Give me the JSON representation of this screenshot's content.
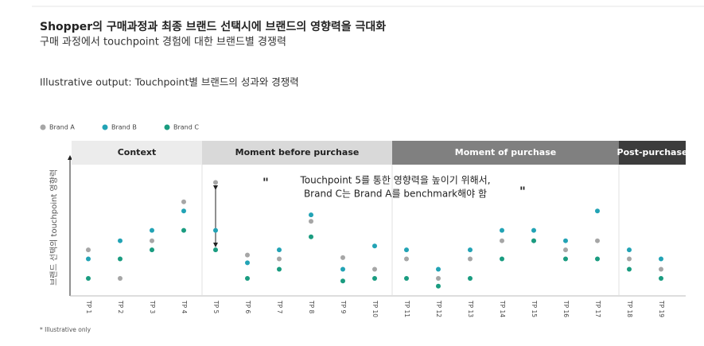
{
  "chart_data": {
    "type": "scatter",
    "title": "Shopper의 구매과정과 최종 브랜드 선택시에 브랜드의 영향력을 극대화",
    "subtitle": "구매 과정에서 touchpoint 경험에 대한 브랜드별 경쟁력",
    "caption": "Illustrative output: Touchpoint별 브랜드의 성과와 경쟁력",
    "y_label": "브랜드 선택의 touchpoint 영향력",
    "footnote": "* Illustrative only",
    "annotation": [
      "Touchpoint 5를 통한 영향력을 높이기 위해서,",
      "Brand C는 Brand A를 benchmark해야 함"
    ],
    "phases": [
      "Context",
      "Moment before purchase",
      "Moment of purchase",
      "Post-purchase"
    ],
    "categories": [
      "TP 1",
      "TP 2",
      "TP 3",
      "TP 4",
      "TP 5",
      "TP 6",
      "TP 7",
      "TP 8",
      "TP 9",
      "TP 10",
      "TP 11",
      "TP 12",
      "TP 13",
      "TP 14",
      "TP 15",
      "TP 16",
      "TP 17",
      "TP 18",
      "TP 19"
    ],
    "ylim": [
      0,
      10
    ],
    "legend": "top-left",
    "series": [
      {
        "name": "Brand A",
        "color": "#a6a6a6",
        "values": [
          3.0,
          0.8,
          3.7,
          6.7,
          8.2,
          2.6,
          2.3,
          5.2,
          2.4,
          1.5,
          2.3,
          0.8,
          2.3,
          3.7,
          3.7,
          3.0,
          3.7,
          2.3,
          1.5
        ]
      },
      {
        "name": "Brand B",
        "color": "#22a3b5",
        "values": [
          2.3,
          3.7,
          4.5,
          6.0,
          4.5,
          2.0,
          3.0,
          5.7,
          1.5,
          3.3,
          3.0,
          1.5,
          3.0,
          4.5,
          4.5,
          3.7,
          6.0,
          3.0,
          2.3
        ]
      },
      {
        "name": "Brand C",
        "color": "#1a9c80",
        "values": [
          0.8,
          2.3,
          3.0,
          4.5,
          3.0,
          0.8,
          1.5,
          4.0,
          0.6,
          0.8,
          0.8,
          0.2,
          0.8,
          2.3,
          3.7,
          2.3,
          2.3,
          1.5,
          0.8
        ]
      }
    ]
  }
}
